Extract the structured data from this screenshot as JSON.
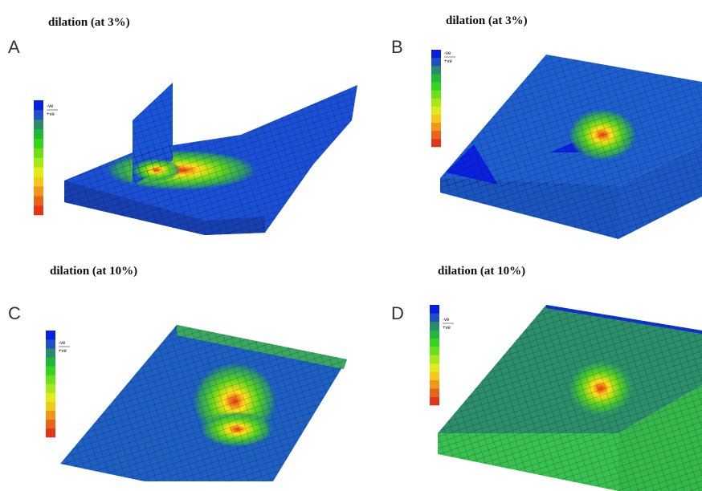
{
  "panels": [
    {
      "label": "A",
      "title": "dilation (at 3%)",
      "legend": {
        "top": "-ve",
        "bottom": "+ve"
      }
    },
    {
      "label": "B",
      "title": "dilation (at 3%)",
      "legend": {
        "top": "-ve",
        "bottom": "+ve"
      }
    },
    {
      "label": "C",
      "title": "dilation (at 10%)",
      "legend": {
        "top": "-ve",
        "bottom": "+ve"
      }
    },
    {
      "label": "D",
      "title": "dilation (at 10%)",
      "legend": {
        "top": "-ve",
        "bottom": "+ve"
      }
    }
  ]
}
